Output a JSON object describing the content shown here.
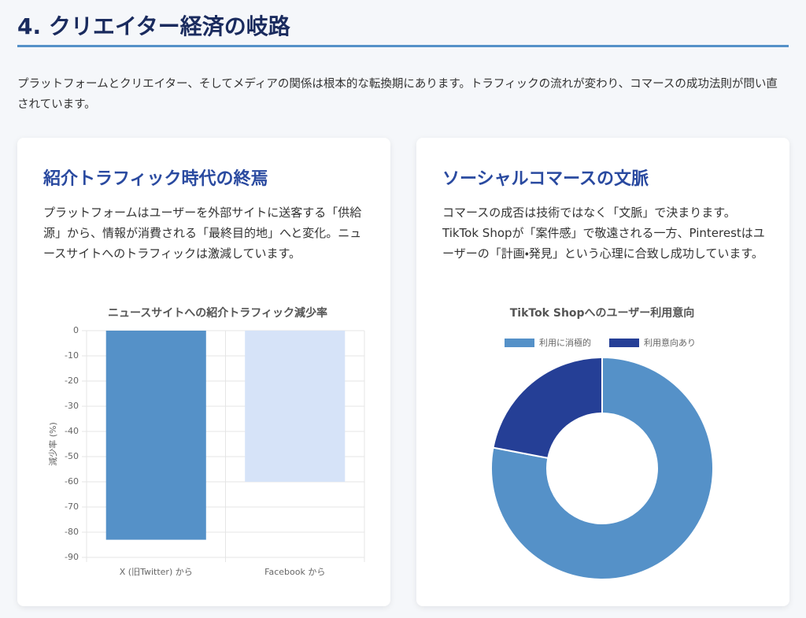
{
  "header": {
    "title": "4. クリエイター経済の岐路",
    "intro": "プラットフォームとクリエイター、そしてメディアの関係は根本的な転換期にあります。トラフィックの流れが変わり、コマースの成功法則が問い直されています。"
  },
  "cards": [
    {
      "title": "紹介トラフィック時代の終焉",
      "text": "プラットフォームはユーザーを外部サイトに送客する「供給源」から、情報が消費される「最終目的地」へと変化。ニュースサイトへのトラフィックは激減しています。"
    },
    {
      "title": "ソーシャルコマースの文脈",
      "text": "コマースの成否は技術ではなく「文脈」で決まります。TikTok Shopが「案件感」で敬遠される一方、Pinterestはユーザーの「計画・発見」という心理に合致し成功しています。"
    }
  ],
  "chart_data": [
    {
      "type": "bar",
      "title": "ニュースサイトへの紹介トラフィック減少率",
      "y_label": "減少率 (%)",
      "categories": [
        "X (旧Twitter) から",
        "Facebook から"
      ],
      "values": [
        -83,
        -60
      ],
      "colors": [
        "#5591c8",
        "#d6e3f8"
      ],
      "ylim": [
        -90,
        0
      ],
      "yticks": [
        0,
        -10,
        -20,
        -30,
        -40,
        -50,
        -60,
        -70,
        -80,
        -90
      ],
      "grid": true
    },
    {
      "type": "doughnut",
      "title": "TikTok Shopへのユーザー利用意向",
      "categories": [
        "利用に消極的",
        "利用意向あり"
      ],
      "values": [
        78,
        22
      ],
      "colors": [
        "#5591c8",
        "#253f96"
      ],
      "legend": "top"
    }
  ]
}
